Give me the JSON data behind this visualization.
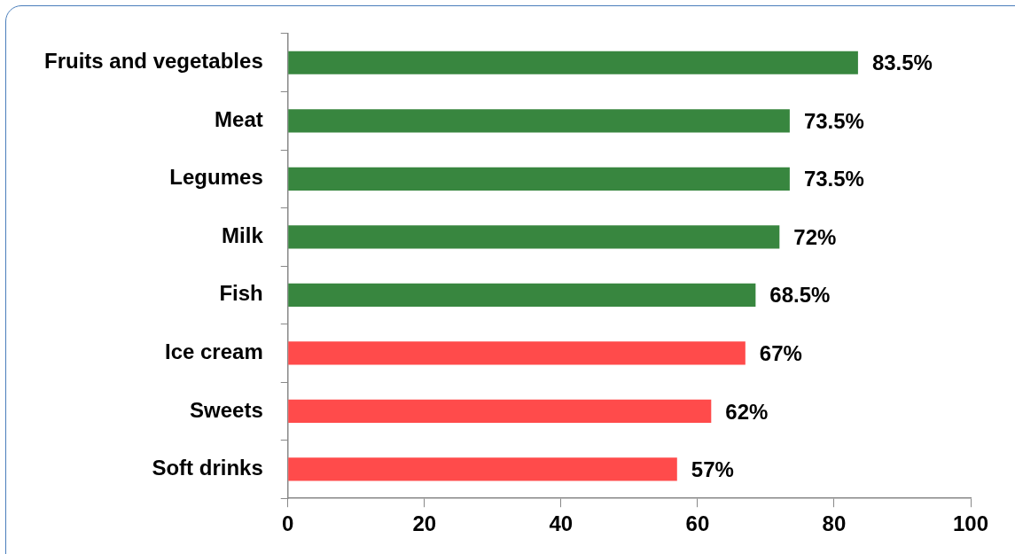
{
  "chart_data": {
    "type": "bar",
    "orientation": "horizontal",
    "categories": [
      "Fruits and vegetables",
      "Meat",
      "Legumes",
      "Milk",
      "Fish",
      "Ice cream",
      "Sweets",
      "Soft drinks"
    ],
    "values": [
      83.5,
      73.5,
      73.5,
      72,
      68.5,
      67,
      62,
      57
    ],
    "colors": [
      "#38863f",
      "#38863f",
      "#38863f",
      "#38863f",
      "#38863f",
      "#ff4b4b",
      "#ff4b4b",
      "#ff4b4b"
    ],
    "value_labels": [
      "83.5%",
      "73.5%",
      "73.5%",
      "72%",
      "68.5%",
      "67%",
      "62%",
      "57%"
    ],
    "xlim": [
      0,
      100
    ],
    "xticks": [
      0,
      20,
      40,
      60,
      80,
      100
    ],
    "grid": false,
    "legend": false
  }
}
